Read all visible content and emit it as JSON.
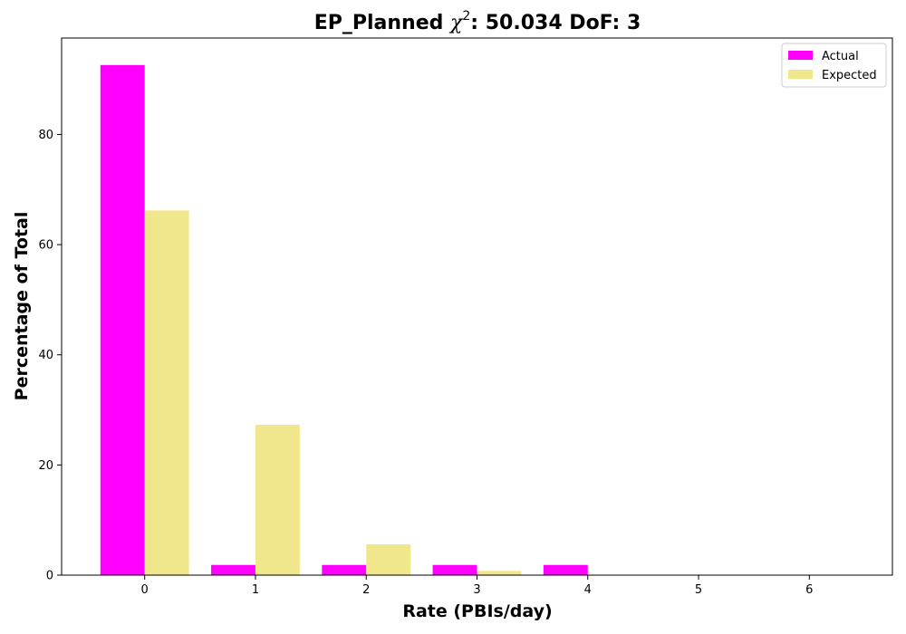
{
  "chart_data": {
    "type": "bar",
    "title_prefix": "EP_Planned ",
    "title_symbol": "χ",
    "title_superscript": "2",
    "title_suffix": ": 50.034 DoF: 3",
    "xlabel": "Rate (PBIs/day)",
    "ylabel": "Percentage of Total",
    "categories": [
      "0",
      "1",
      "2",
      "3",
      "4",
      "5",
      "6"
    ],
    "x_ticks": [
      "0",
      "1",
      "2",
      "3",
      "4",
      "5",
      "6"
    ],
    "y_ticks": [
      "0",
      "20",
      "40",
      "60",
      "80"
    ],
    "ylim": [
      0,
      97.5
    ],
    "xlim": [
      -0.75,
      6.75
    ],
    "grid": false,
    "legend_position": "top-right",
    "series": [
      {
        "name": "Actual",
        "color": "#ff00ff",
        "values": [
          92.6,
          1.85,
          1.85,
          1.85,
          1.85,
          0,
          0
        ]
      },
      {
        "name": "Expected",
        "color": "#f0e68c",
        "values": [
          66.2,
          27.3,
          5.6,
          0.77,
          0.08,
          0.01,
          0.0
        ]
      }
    ]
  }
}
